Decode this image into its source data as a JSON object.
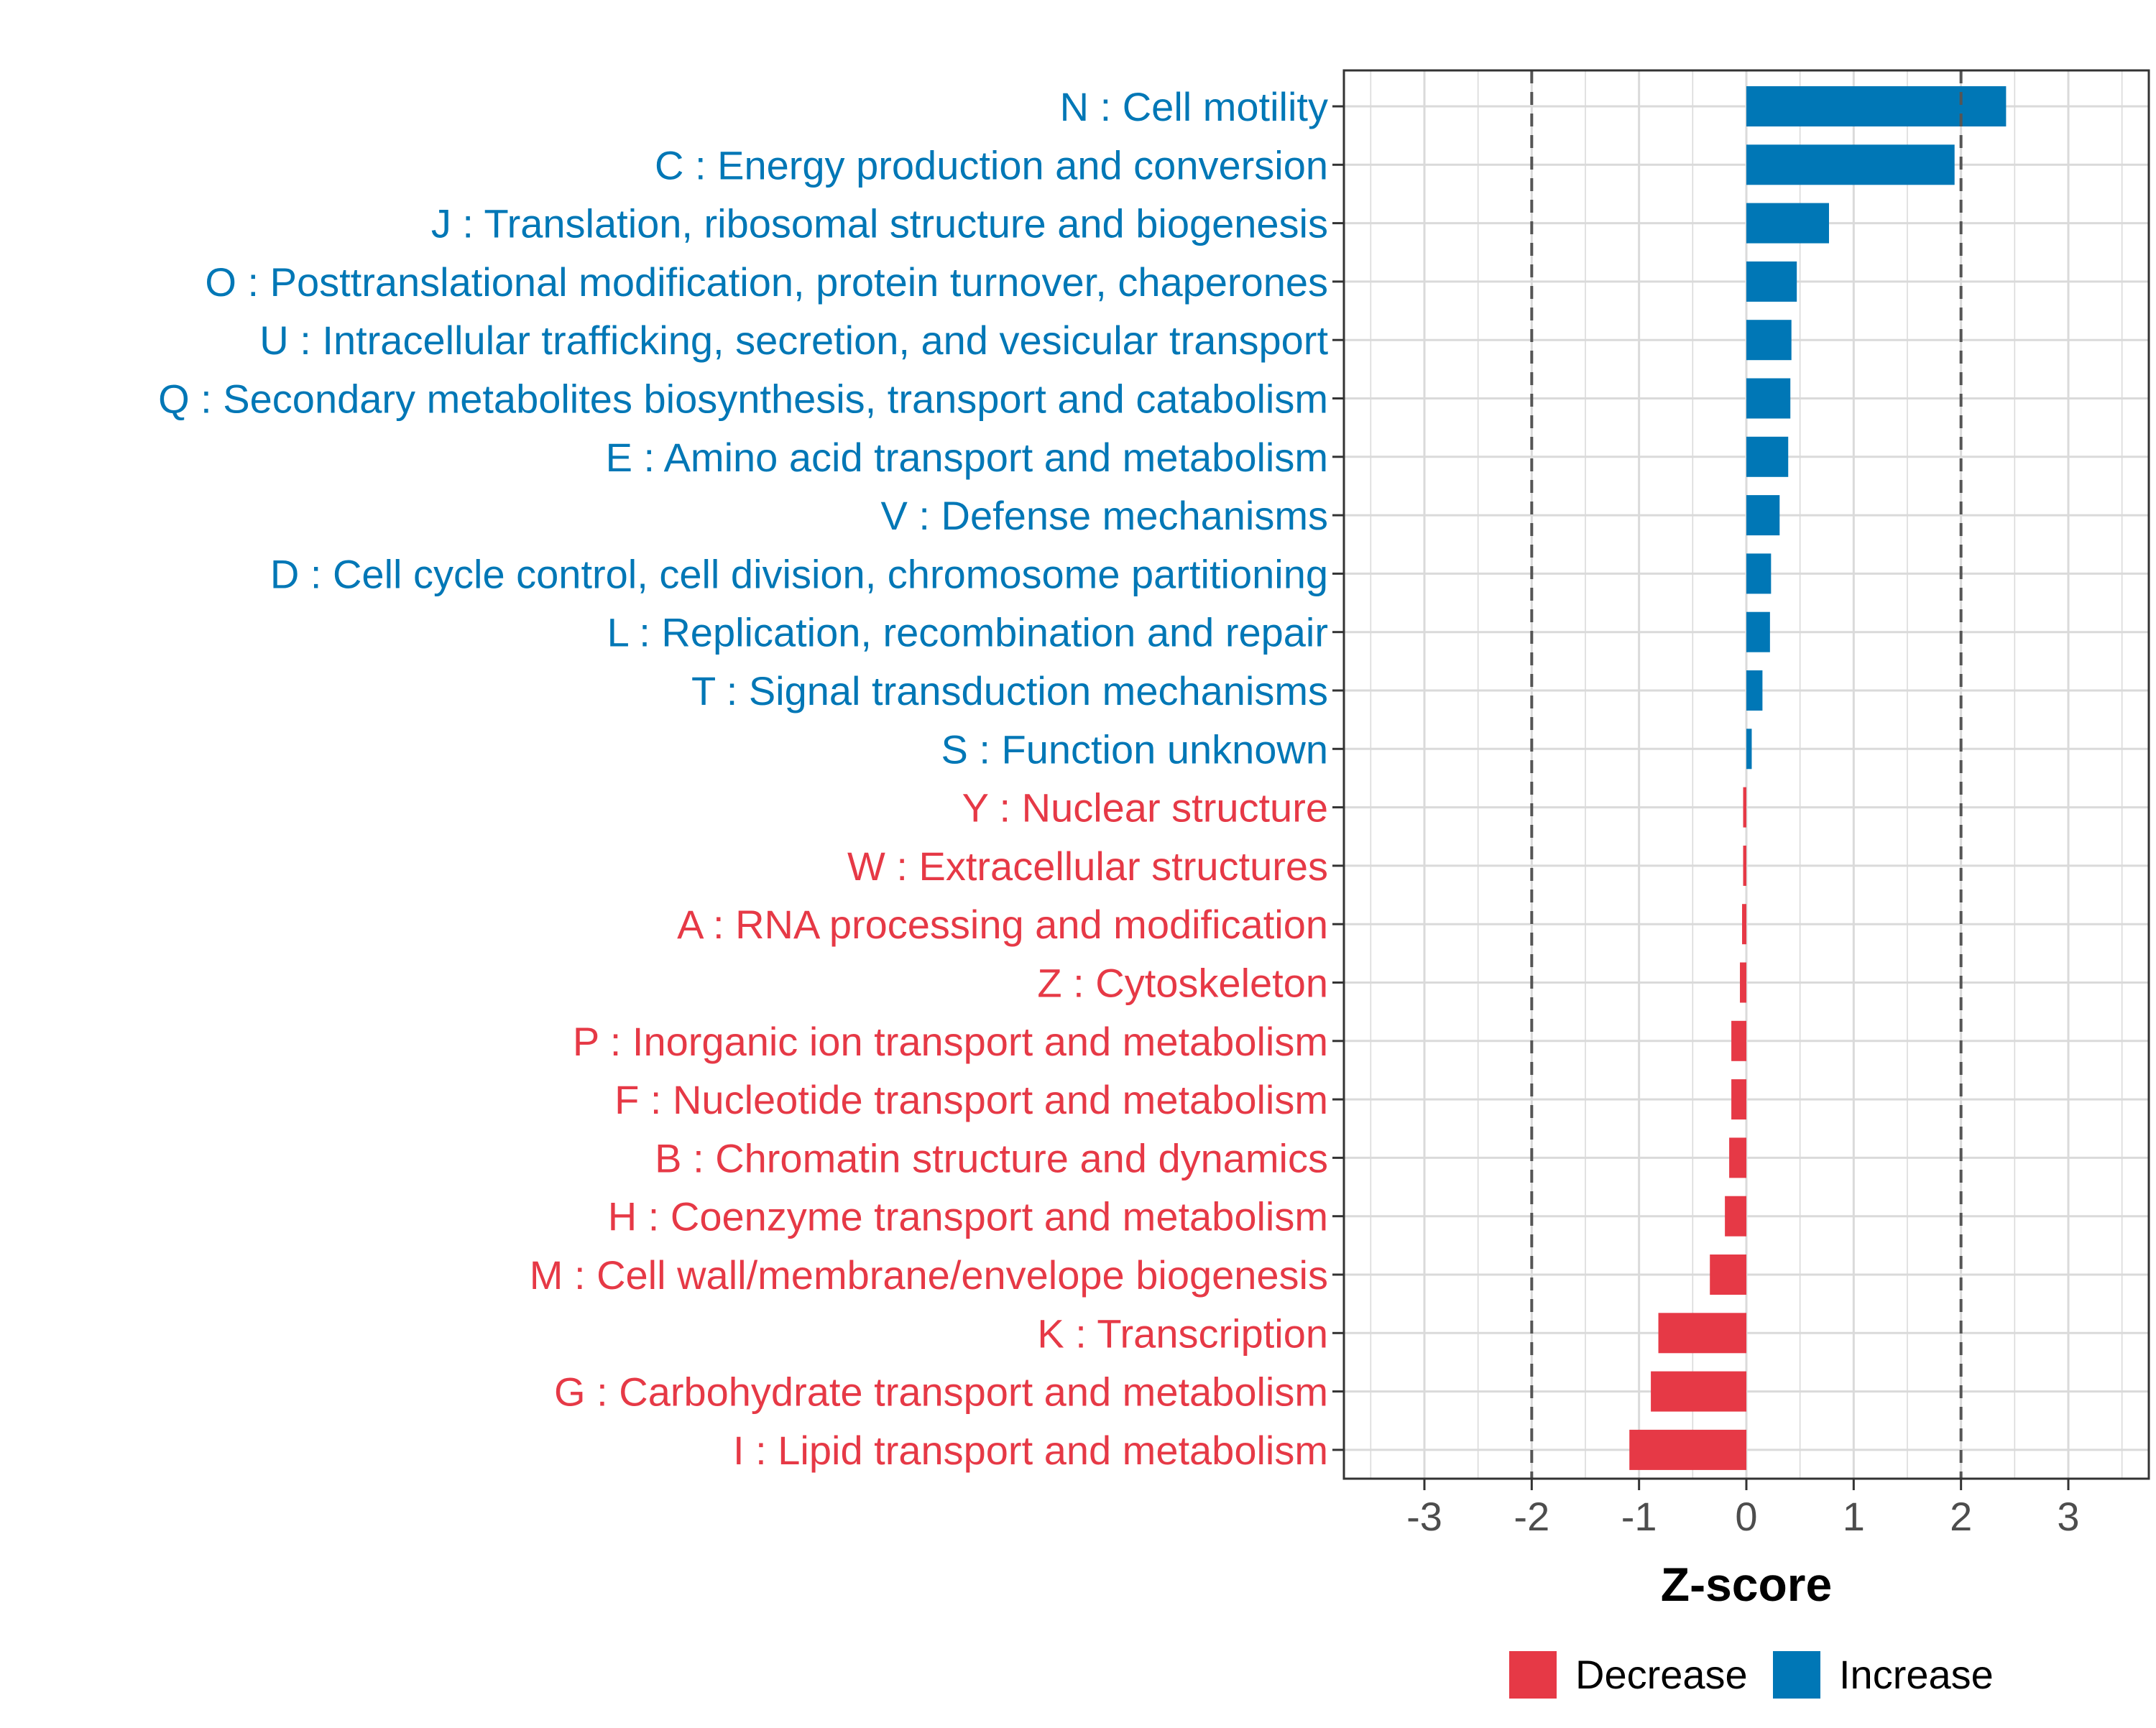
{
  "chart_data": {
    "type": "bar",
    "orientation": "horizontal",
    "title": "",
    "xlabel": "Z-score",
    "ylabel": "",
    "xlim": [
      -3.75,
      3.75
    ],
    "xticks": [
      -3,
      -2,
      -1,
      0,
      1,
      2,
      3
    ],
    "xtick_labels": [
      "-3",
      "-2",
      "-1",
      "0",
      "1",
      "2",
      "3"
    ],
    "reference_lines": [
      -2,
      2
    ],
    "grid": true,
    "categories": [
      "N : Cell motility",
      "C : Energy production and conversion",
      "J : Translation, ribosomal structure and biogenesis",
      "O : Posttranslational modification, protein turnover, chaperones",
      "U : Intracellular trafficking, secretion, and vesicular transport",
      "Q : Secondary metabolites biosynthesis, transport and catabolism",
      "E : Amino acid transport and metabolism",
      "V : Defense mechanisms",
      "D : Cell cycle control, cell division, chromosome partitioning",
      "L : Replication, recombination and repair",
      "T : Signal transduction mechanisms",
      "S : Function unknown",
      "Y : Nuclear structure",
      "W : Extracellular structures",
      "A : RNA processing and modification",
      "Z : Cytoskeleton",
      "P : Inorganic ion transport and metabolism",
      "F : Nucleotide transport and metabolism",
      "B : Chromatin structure and dynamics",
      "H : Coenzyme transport and metabolism",
      "M : Cell wall/membrane/envelope biogenesis",
      "K : Transcription",
      "G : Carbohydrate transport and metabolism",
      "I : Lipid transport and metabolism"
    ],
    "values": [
      2.42,
      1.94,
      0.77,
      0.47,
      0.42,
      0.41,
      0.39,
      0.31,
      0.23,
      0.22,
      0.15,
      0.05,
      -0.03,
      -0.03,
      -0.04,
      -0.06,
      -0.14,
      -0.14,
      -0.16,
      -0.2,
      -0.34,
      -0.82,
      -0.89,
      -1.09
    ],
    "groups": [
      "Increase",
      "Increase",
      "Increase",
      "Increase",
      "Increase",
      "Increase",
      "Increase",
      "Increase",
      "Increase",
      "Increase",
      "Increase",
      "Increase",
      "Decrease",
      "Decrease",
      "Decrease",
      "Decrease",
      "Decrease",
      "Decrease",
      "Decrease",
      "Decrease",
      "Decrease",
      "Decrease",
      "Decrease",
      "Decrease"
    ],
    "legend": {
      "position": "bottom",
      "entries": [
        {
          "label": "Decrease",
          "color": "#E63946"
        },
        {
          "label": "Increase",
          "color": "#0077B6"
        }
      ]
    },
    "colors": {
      "Increase": "#0077B6",
      "Decrease": "#E63946",
      "grid": "#DADADA",
      "reference_line": "#555555",
      "axis": "#333333"
    }
  }
}
